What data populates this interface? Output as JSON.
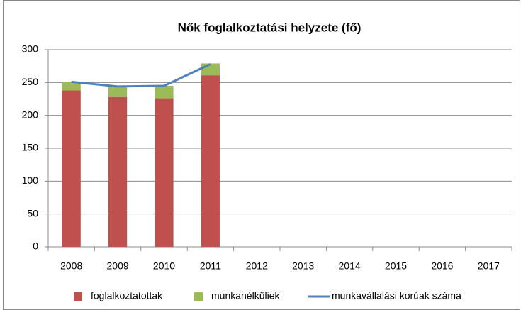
{
  "chart_data": {
    "type": "bar",
    "stacked": true,
    "title": "Nők foglalkoztatási helyzete (fő)",
    "categories": [
      "2008",
      "2009",
      "2010",
      "2011",
      "2012",
      "2013",
      "2014",
      "2015",
      "2016",
      "2017"
    ],
    "series": [
      {
        "name": "foglalkoztatottak",
        "color": "#c0504d",
        "type": "bar",
        "values": [
          238,
          228,
          226,
          261,
          null,
          null,
          null,
          null,
          null,
          null
        ]
      },
      {
        "name": "munkanélküliek",
        "color": "#9bbb59",
        "type": "bar",
        "values": [
          13,
          16,
          19,
          18,
          null,
          null,
          null,
          null,
          null,
          null
        ]
      },
      {
        "name": "munkavállalási korúak száma",
        "color": "#4f81bd",
        "type": "line",
        "values": [
          251,
          244,
          245,
          278,
          null,
          null,
          null,
          null,
          null,
          null
        ]
      }
    ],
    "ylim": [
      0,
      300
    ],
    "yticks": [
      0,
      50,
      100,
      150,
      200,
      250,
      300
    ],
    "grid": true,
    "legend": "bottom"
  }
}
